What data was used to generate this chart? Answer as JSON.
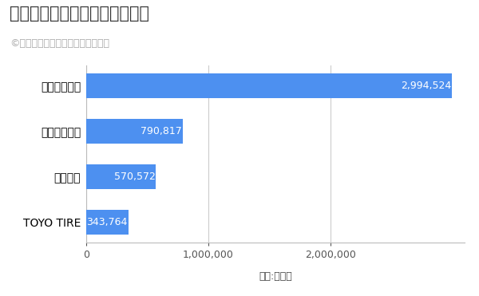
{
  "title": "タイヤ業界の売上高ランキング",
  "subtitle": "©ひと目で分かる売上高ランキング",
  "xlabel": "単位:百万円",
  "categories": [
    "ブリヂストン",
    "住友ゴム工業",
    "横浜ゴム",
    "TOYO TIRE"
  ],
  "values": [
    2994524,
    790817,
    570572,
    343764
  ],
  "bar_color": "#4d90f0",
  "label_color": "#ffffff",
  "value_labels": [
    "2,994,524",
    "790,817",
    "570,572",
    "343,764"
  ],
  "xlim": [
    0,
    3100000
  ],
  "xticks": [
    0,
    1000000,
    2000000
  ],
  "xtick_labels": [
    "0",
    "1,000,000",
    "2,000,000"
  ],
  "background_color": "#ffffff",
  "grid_color": "#cccccc",
  "title_fontsize": 15,
  "subtitle_fontsize": 9,
  "ytick_fontsize": 10,
  "xtick_fontsize": 9,
  "bar_label_fontsize": 9,
  "xlabel_fontsize": 9
}
